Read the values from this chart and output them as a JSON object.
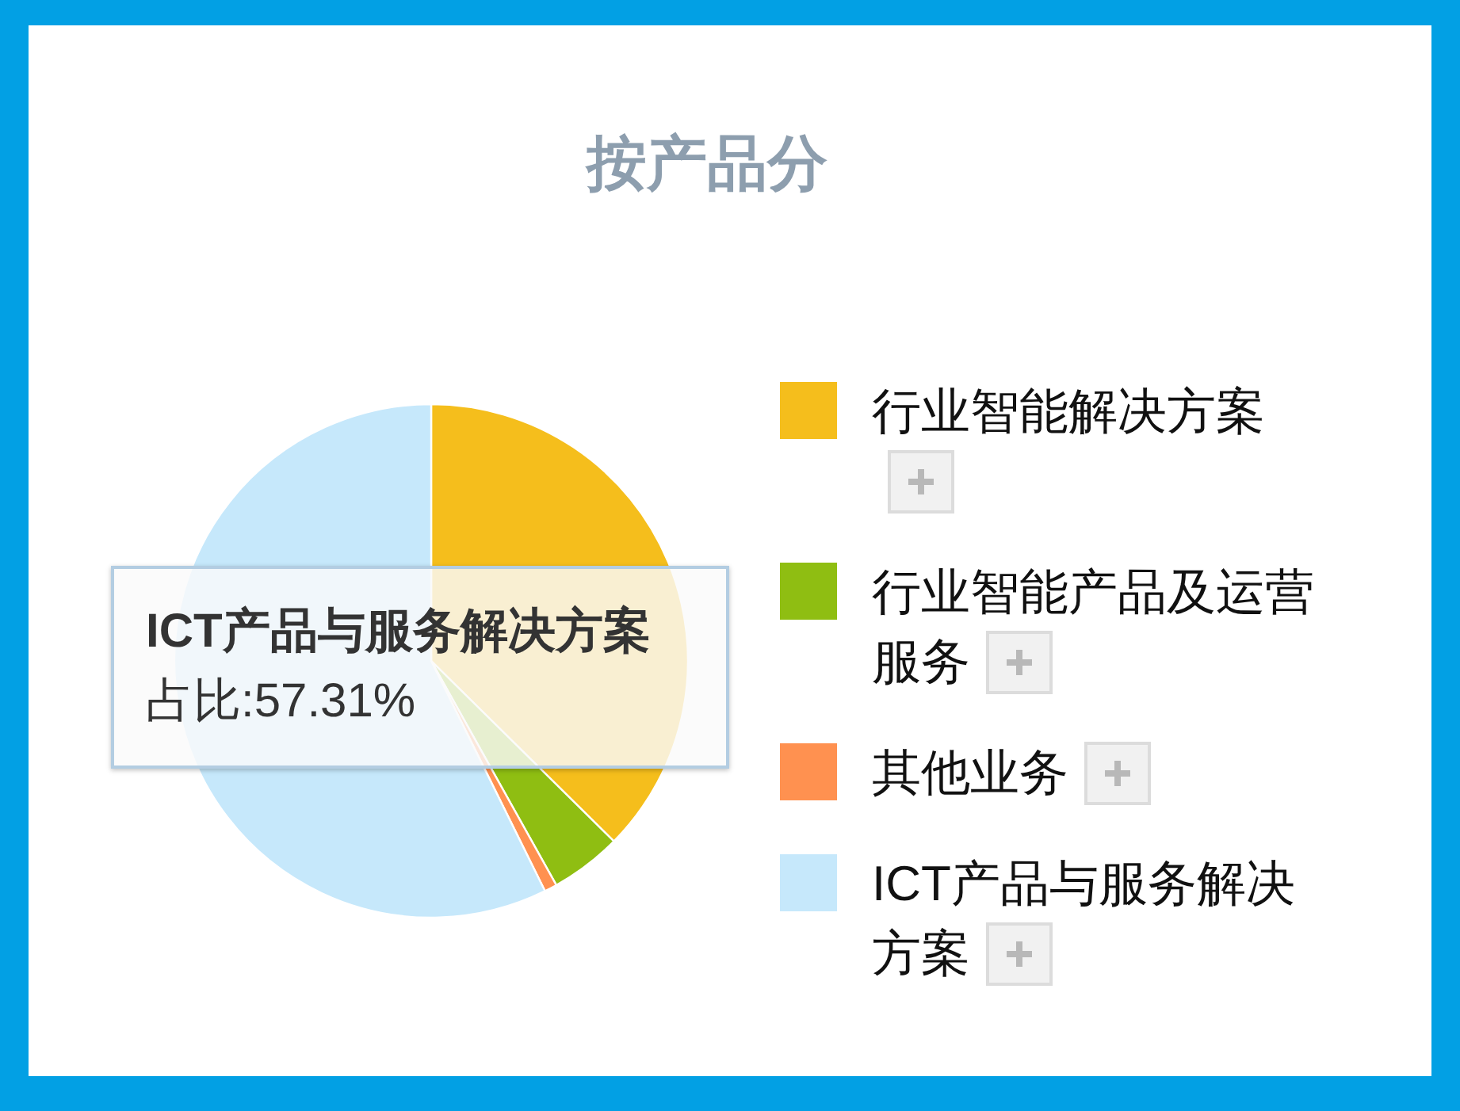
{
  "chart_data": {
    "type": "pie",
    "title": "按产品分",
    "categories": [
      "行业智能解决方案",
      "行业智能产品及运营服务",
      "其他业务",
      "ICT产品与服务解决方案"
    ],
    "values": [
      37.4,
      4.5,
      0.79,
      57.31
    ],
    "colors": [
      "#f5be1c",
      "#8fbe12",
      "#ff9150",
      "#c6e8fb"
    ],
    "legend": "right",
    "annotations": [
      "ICT产品与服务解决方案",
      "占比:57.31%"
    ]
  }
}
